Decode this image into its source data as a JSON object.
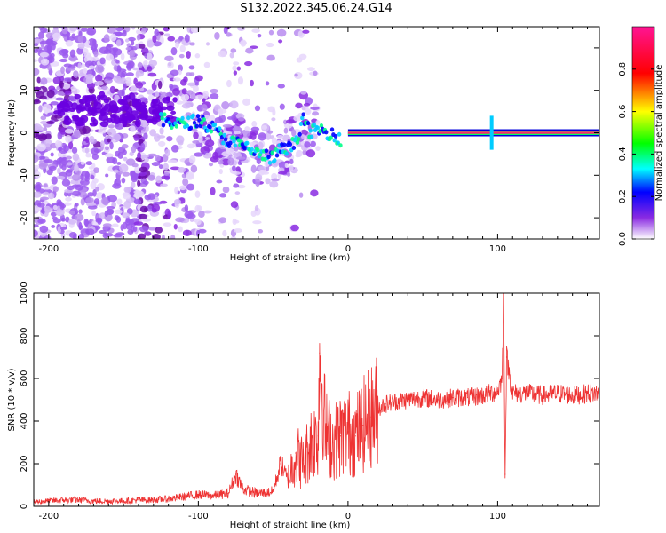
{
  "title": "S132.2022.345.06.24.G14",
  "chart_data": [
    {
      "type": "heatmap",
      "xlabel": "Height of straight line (km)",
      "ylabel": "Frequency (Hz)",
      "xlim": [
        -210,
        168
      ],
      "ylim": [
        -25,
        25
      ],
      "xticks": [
        -200,
        -100,
        0,
        100
      ],
      "yticks": [
        -20,
        -10,
        0,
        10,
        20
      ],
      "grid": false,
      "colorbar": {
        "label": "Normalized spectral amplitude",
        "range": [
          0,
          1
        ],
        "ticks": [
          "0.0",
          "0.2",
          "0.4",
          "0.6",
          "0.8"
        ],
        "colors": [
          "#ffffff",
          "#8a2be2",
          "#0000ff",
          "#00ffff",
          "#00ff00",
          "#ffff00",
          "#ff0000",
          "#ff1493"
        ]
      },
      "ridge": {
        "x": [
          -125,
          -110,
          -100,
          -90,
          -80,
          -70,
          -60,
          -50,
          -45,
          -40,
          -35,
          -30,
          -25,
          -20,
          -15,
          -10,
          -5,
          0,
          10,
          20,
          40,
          60,
          80,
          90,
          95,
          98,
          100,
          120,
          140,
          168
        ],
        "y": [
          3,
          2,
          3,
          1,
          -2,
          -3,
          -5,
          -6,
          -4,
          -4,
          -2,
          3,
          0,
          1,
          0,
          0,
          -2,
          0,
          0,
          0,
          0,
          0,
          0,
          0,
          3,
          -1,
          0,
          0,
          0,
          0
        ]
      }
    },
    {
      "type": "line",
      "xlabel": "Height of straight line (km)",
      "ylabel": "SNR (10 * v/v)",
      "xlim": [
        -210,
        168
      ],
      "ylim": [
        0,
        1000
      ],
      "xticks": [
        -200,
        -100,
        0,
        100
      ],
      "yticks": [
        0,
        200,
        400,
        600,
        800,
        1000
      ],
      "grid": false,
      "color": "#ee3333",
      "series": [
        {
          "x": [
            -210,
            -200,
            -190,
            -180,
            -170,
            -160,
            -150,
            -140,
            -130,
            -120,
            -110,
            -100,
            -90,
            -80,
            -75,
            -70,
            -60,
            -50,
            -45,
            -40,
            -35,
            -30,
            -25,
            -20,
            -19,
            -15,
            -10,
            -5,
            0,
            5,
            10,
            15,
            20,
            25,
            30,
            40,
            50,
            60,
            70,
            80,
            90,
            95,
            100,
            103,
            104,
            105,
            106,
            110,
            120,
            130,
            140,
            150,
            160,
            168
          ],
          "y": [
            20,
            25,
            30,
            30,
            25,
            25,
            25,
            30,
            30,
            35,
            45,
            55,
            50,
            60,
            150,
            80,
            60,
            70,
            200,
            120,
            250,
            200,
            300,
            330,
            720,
            350,
            300,
            330,
            350,
            330,
            380,
            420,
            460,
            480,
            490,
            500,
            510,
            500,
            510,
            510,
            520,
            530,
            540,
            600,
            1000,
            150,
            700,
            530,
            530,
            520,
            530,
            520,
            530,
            530
          ]
        }
      ]
    }
  ]
}
